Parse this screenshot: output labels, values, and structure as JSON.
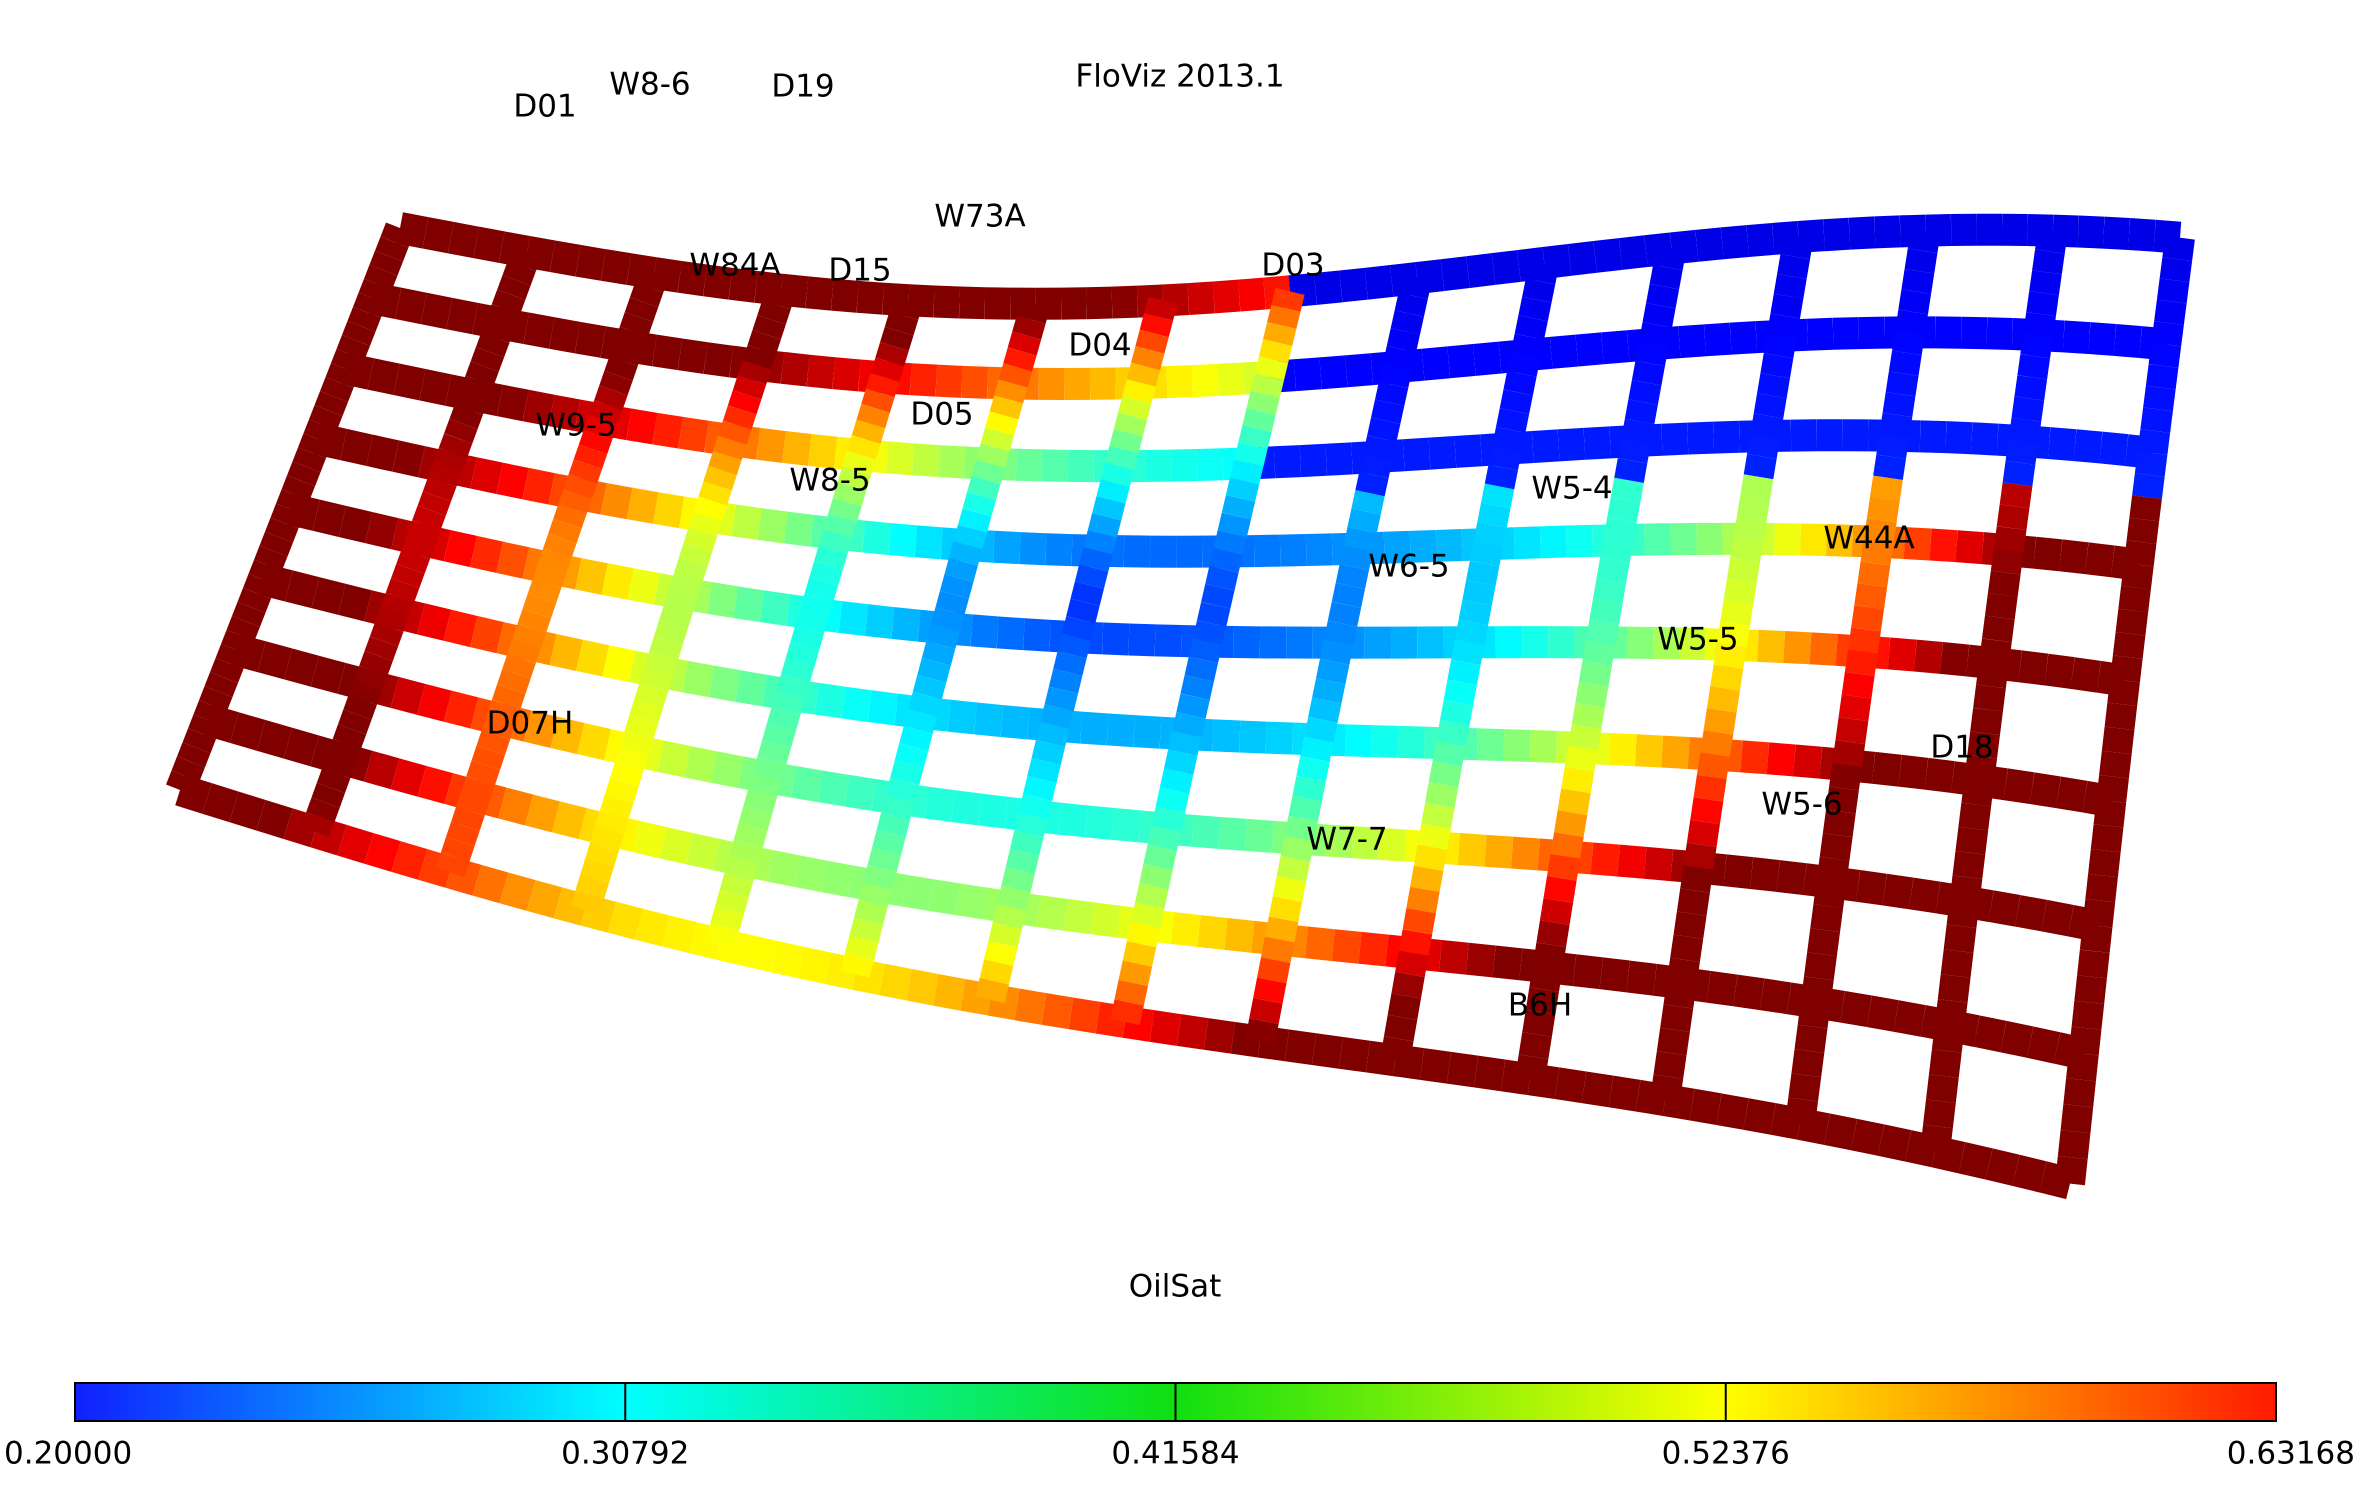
{
  "header": {
    "title": "FloViz 2013.1"
  },
  "well_labels": [
    "D01",
    "W8-6",
    "D19",
    "W73A",
    "W84A",
    "D15",
    "D03",
    "D04",
    "D05",
    "W9-5",
    "W8-5",
    "W5-4",
    "W44A",
    "W6-5",
    "W5-5",
    "D18",
    "D07H",
    "W5-6",
    "W7-7",
    "B6H"
  ],
  "colorbar": {
    "label": "OilSat",
    "lim": [
      0.2,
      0.63168
    ],
    "ticks": [
      {
        "value": 0.2,
        "label": "0.20000"
      },
      0.30792,
      0.41584,
      0.52376,
      0.63168
    ]
  }
}
